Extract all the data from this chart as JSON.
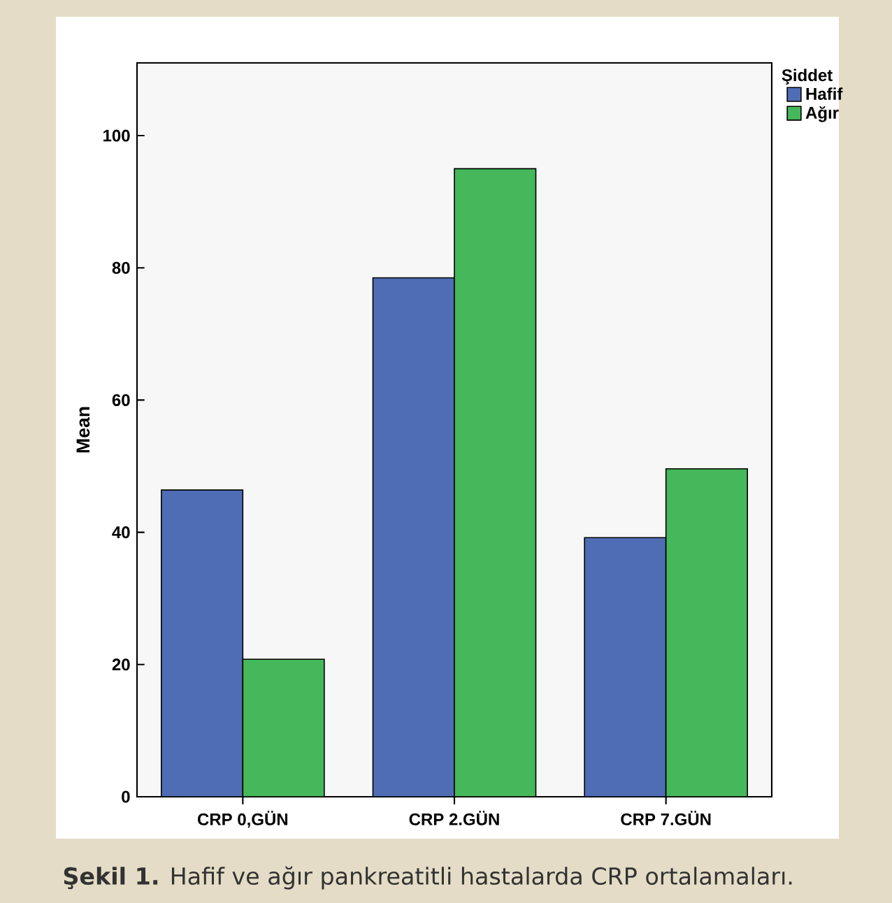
{
  "chart_data": {
    "type": "bar",
    "categories": [
      "CRP 0,GÜN",
      "CRP 2.GÜN",
      "CRP 7.GÜN"
    ],
    "series": [
      {
        "name": "Hafif",
        "color": "#4f6db5",
        "values": [
          46.4,
          78.5,
          39.2
        ]
      },
      {
        "name": "Ağır",
        "color": "#44b85a",
        "values": [
          20.8,
          95.0,
          49.6
        ]
      }
    ],
    "ylabel": "Mean",
    "legend_title": "Şiddet",
    "legend": "right",
    "ylim": [
      0,
      111
    ],
    "yticks": [
      0,
      20,
      40,
      60,
      80,
      100
    ],
    "annotations": [
      "**Şekil 1.** Hafif ve ağır pankreatitli hastalarda CRP ortalamaları."
    ]
  }
}
